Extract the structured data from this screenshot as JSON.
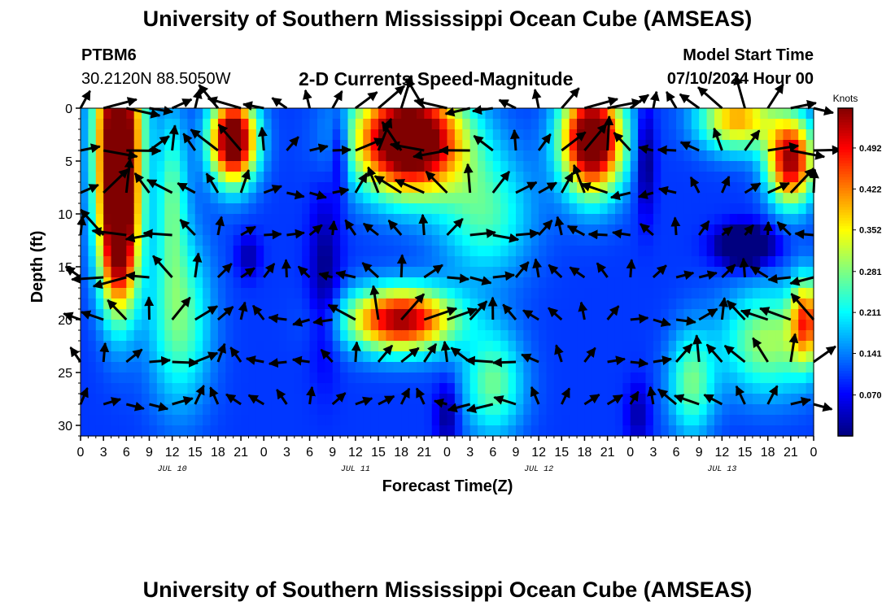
{
  "header": {
    "title": "University of Southern Mississippi Ocean Cube (AMSEAS)",
    "station_id": "PTBM6",
    "coordinates": "30.2120N  88.5050W",
    "subtitle": "2-D Currents Speed-Magnitude",
    "model_start_label": "Model Start Time",
    "model_start_value": "07/10/2024 Hour 00"
  },
  "footer": {
    "title": "University of Southern Mississippi Ocean Cube (AMSEAS)"
  },
  "chart_data": {
    "type": "heatmap",
    "xlabel": "Forecast Time(Z)",
    "ylabel": "Depth (ft)",
    "x_range": [
      0,
      96
    ],
    "y_range": [
      0,
      31
    ],
    "y_inverted": true,
    "x_tick_labels": [
      "0",
      "3",
      "6",
      "9",
      "12",
      "15",
      "18",
      "21",
      "0",
      "3",
      "6",
      "9",
      "12",
      "15",
      "18",
      "21",
      "0",
      "3",
      "6",
      "9",
      "12",
      "15",
      "18",
      "21",
      "0",
      "3",
      "6",
      "9",
      "12",
      "15",
      "18",
      "21",
      "0"
    ],
    "y_ticks": [
      0,
      5,
      10,
      15,
      20,
      25,
      30
    ],
    "date_labels": [
      {
        "label": "JUL 10",
        "hour": 12
      },
      {
        "label": "JUL 11",
        "hour": 36
      },
      {
        "label": "JUL 12",
        "hour": 60
      },
      {
        "label": "JUL 13",
        "hour": 84
      }
    ],
    "colorbar": {
      "unit": "Knots",
      "range": [
        0.0,
        0.56
      ],
      "ticks": [
        "0.070",
        "0.141",
        "0.211",
        "0.281",
        "0.352",
        "0.422",
        "0.492"
      ],
      "tick_values": [
        0.07,
        0.141,
        0.211,
        0.281,
        0.352,
        0.422,
        0.492
      ]
    },
    "speed_hotspots": [
      {
        "hour": 5,
        "depth": 2,
        "speed": 0.56,
        "sx": 3,
        "sy": 10
      },
      {
        "hour": 5,
        "depth": 13,
        "speed": 0.4,
        "sx": 2.5,
        "sy": 7
      },
      {
        "hour": 20,
        "depth": 3,
        "speed": 0.55,
        "sx": 3,
        "sy": 4
      },
      {
        "hour": 43,
        "depth": 3,
        "speed": 0.6,
        "sx": 7,
        "sy": 5
      },
      {
        "hour": 42,
        "depth": 20,
        "speed": 0.45,
        "sx": 7,
        "sy": 3
      },
      {
        "hour": 67,
        "depth": 3,
        "speed": 0.56,
        "sx": 4,
        "sy": 5
      },
      {
        "hour": 86,
        "depth": 1,
        "speed": 0.3,
        "sx": 5,
        "sy": 3
      },
      {
        "hour": 93,
        "depth": 5,
        "speed": 0.45,
        "sx": 3,
        "sy": 4
      },
      {
        "hour": 95,
        "depth": 20,
        "speed": 0.3,
        "sx": 2,
        "sy": 4
      },
      {
        "hour": 13,
        "depth": 20,
        "speed": 0.17,
        "sx": 4,
        "sy": 8
      },
      {
        "hour": 90,
        "depth": 22,
        "speed": 0.2,
        "sx": 6,
        "sy": 5
      },
      {
        "hour": 54,
        "depth": 26,
        "speed": 0.17,
        "sx": 4,
        "sy": 5
      },
      {
        "hour": 80,
        "depth": 26,
        "speed": 0.17,
        "sx": 3,
        "sy": 5
      },
      {
        "hour": 53,
        "depth": 10,
        "speed": 0.15,
        "sx": 6,
        "sy": 6
      },
      {
        "hour": 12,
        "depth": 8,
        "speed": 0.15,
        "sx": 2,
        "sy": 8
      },
      {
        "hour": 32,
        "depth": 16,
        "speed": -0.1,
        "sx": 2,
        "sy": 8
      },
      {
        "hour": 34,
        "depth": 4,
        "speed": -0.12,
        "sx": 1.2,
        "sy": 4
      },
      {
        "hour": 74,
        "depth": 5,
        "speed": -0.12,
        "sx": 1.2,
        "sy": 5
      },
      {
        "hour": 87,
        "depth": 13,
        "speed": -0.25,
        "sx": 3.5,
        "sy": 1.8
      },
      {
        "hour": 22,
        "depth": 14,
        "speed": -0.08,
        "sx": 1.5,
        "sy": 2
      },
      {
        "hour": 48,
        "depth": 29,
        "speed": -0.1,
        "sx": 1.5,
        "sy": 3
      },
      {
        "hour": 73,
        "depth": 29,
        "speed": -0.08,
        "sx": 1.5,
        "sy": 3
      }
    ],
    "base_speed": 0.1,
    "vector_depths": [
      0,
      4,
      8,
      12,
      16,
      20,
      24,
      28
    ],
    "vector_hour_step": 3,
    "vector_max_len_knots": 0.5
  }
}
